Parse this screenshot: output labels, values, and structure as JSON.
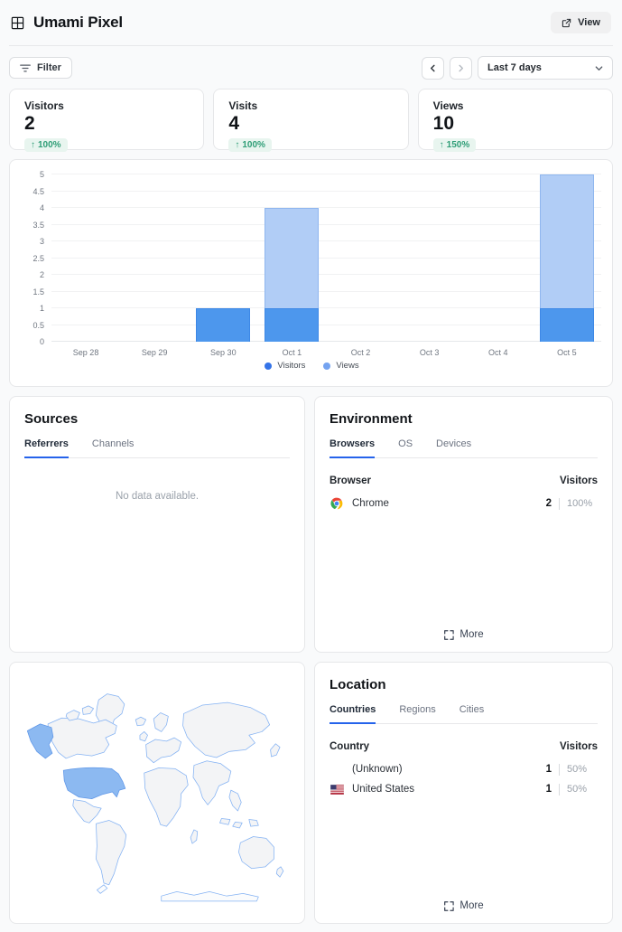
{
  "header": {
    "title": "Umami Pixel",
    "view_label": "View"
  },
  "toolbar": {
    "filter_label": "Filter",
    "date_range_value": "Last 7 days"
  },
  "stats": [
    {
      "label": "Visitors",
      "value": "2",
      "change": "100%",
      "direction": "up"
    },
    {
      "label": "Visits",
      "value": "4",
      "change": "100%",
      "direction": "up"
    },
    {
      "label": "Views",
      "value": "10",
      "change": "150%",
      "direction": "up"
    }
  ],
  "chart_data": {
    "type": "bar",
    "categories": [
      "Sep 28",
      "Sep 29",
      "Sep 30",
      "Oct 1",
      "Oct 2",
      "Oct 3",
      "Oct 4",
      "Oct 5"
    ],
    "series": [
      {
        "name": "Views",
        "values": [
          0,
          0,
          1,
          4,
          0,
          0,
          0,
          5
        ],
        "color": "#b1cdf6",
        "border": "#8fb6ef"
      },
      {
        "name": "Visitors",
        "values": [
          0,
          0,
          1,
          1,
          0,
          0,
          0,
          1
        ],
        "color": "#4d97ed",
        "border": "#3d88e6"
      }
    ],
    "legend_order": [
      "Visitors",
      "Views"
    ],
    "legend_colors": {
      "Visitors": "#3473e8",
      "Views": "#74a3f0"
    },
    "title": "",
    "xlabel": "",
    "ylabel": "",
    "ylim": [
      0,
      5
    ],
    "ytick_step": 0.5,
    "grid": true,
    "legend_position": "bottom"
  },
  "sources": {
    "title": "Sources",
    "tabs": [
      "Referrers",
      "Channels"
    ],
    "active_tab": "Referrers",
    "empty_text": "No data available."
  },
  "environment": {
    "title": "Environment",
    "tabs": [
      "Browsers",
      "OS",
      "Devices"
    ],
    "active_tab": "Browsers",
    "table": {
      "name_header": "Browser",
      "value_header": "Visitors",
      "rows": [
        {
          "name": "Chrome",
          "icon": "chrome-icon",
          "value": "2",
          "percent": "100%"
        }
      ]
    },
    "more_label": "More"
  },
  "location": {
    "title": "Location",
    "tabs": [
      "Countries",
      "Regions",
      "Cities"
    ],
    "active_tab": "Countries",
    "table": {
      "name_header": "Country",
      "value_header": "Visitors",
      "rows": [
        {
          "name": "(Unknown)",
          "icon": null,
          "value": "1",
          "percent": "50%"
        },
        {
          "name": "United States",
          "icon": "us-flag-icon",
          "value": "1",
          "percent": "50%"
        }
      ]
    },
    "more_label": "More"
  },
  "map": {
    "highlighted_country": "United States",
    "highlight_color": "#8cb9f1",
    "land_color": "#f3f4f6",
    "border_color": "#84b2f3"
  },
  "colors": {
    "accent": "#2563eb",
    "positive": "#2f9e77",
    "positive_bg": "#e8f5ef",
    "bar_visitors": "#4d97ed",
    "bar_views": "#b1cdf6"
  }
}
